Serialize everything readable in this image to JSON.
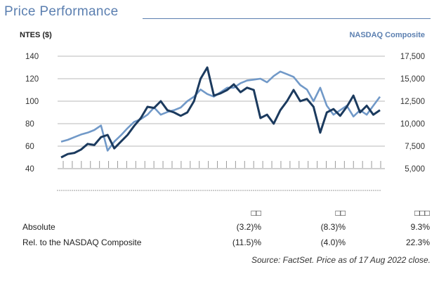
{
  "title": "Price Performance",
  "colors": {
    "title": "#5b7fb0",
    "ntes": "#1b3a5e",
    "nasdaq": "#7199c8",
    "grid": "#d0d0d0"
  },
  "chart_data": {
    "type": "line",
    "left_axis_label": "NTES ($)",
    "right_axis_label": "NASDAQ Composite",
    "left_ylim": [
      40,
      140
    ],
    "right_ylim": [
      5000,
      17500
    ],
    "left_ticks": [
      "140",
      "120",
      "100",
      "80",
      "60",
      "40"
    ],
    "right_ticks": [
      "17,500",
      "15,000",
      "12,500",
      "10,000",
      "7,500",
      "5,000"
    ],
    "grid": true,
    "series": [
      {
        "axis": "left",
        "values": [
          50,
          53,
          54,
          57,
          62,
          61,
          68,
          70,
          58,
          64,
          70,
          78,
          85,
          95,
          94,
          100,
          92,
          90,
          87,
          90,
          100,
          120,
          130,
          105,
          107,
          110,
          115,
          108,
          112,
          110,
          85,
          88,
          80,
          92,
          100,
          110,
          100,
          102,
          95,
          72,
          90,
          93,
          87,
          95,
          105,
          90,
          96,
          88,
          92
        ]
      },
      {
        "axis": "right",
        "values": [
          8000,
          8200,
          8500,
          8800,
          9000,
          9300,
          9800,
          7000,
          8000,
          8700,
          9500,
          10200,
          10500,
          11000,
          11800,
          11000,
          11300,
          11500,
          11800,
          12500,
          13000,
          13800,
          13300,
          13000,
          13500,
          14000,
          14000,
          14500,
          14800,
          14900,
          15000,
          14600,
          15300,
          15800,
          15500,
          15200,
          14300,
          13800,
          12500,
          14000,
          12000,
          11000,
          11500,
          12000,
          10800,
          11500,
          11000,
          12000,
          13000
        ]
      }
    ]
  },
  "table": {
    "headers": [
      "□□",
      "□□",
      "□□□"
    ],
    "rows": [
      {
        "label": "Absolute",
        "values": [
          "(3.2)%",
          "(8.3)%",
          "9.3%"
        ]
      },
      {
        "label": "Rel. to the NASDAQ Composite",
        "values": [
          "(11.5)%",
          "(4.0)%",
          "22.3%"
        ]
      }
    ]
  },
  "source": "Source: FactSet. Price as of 17 Aug 2022 close."
}
